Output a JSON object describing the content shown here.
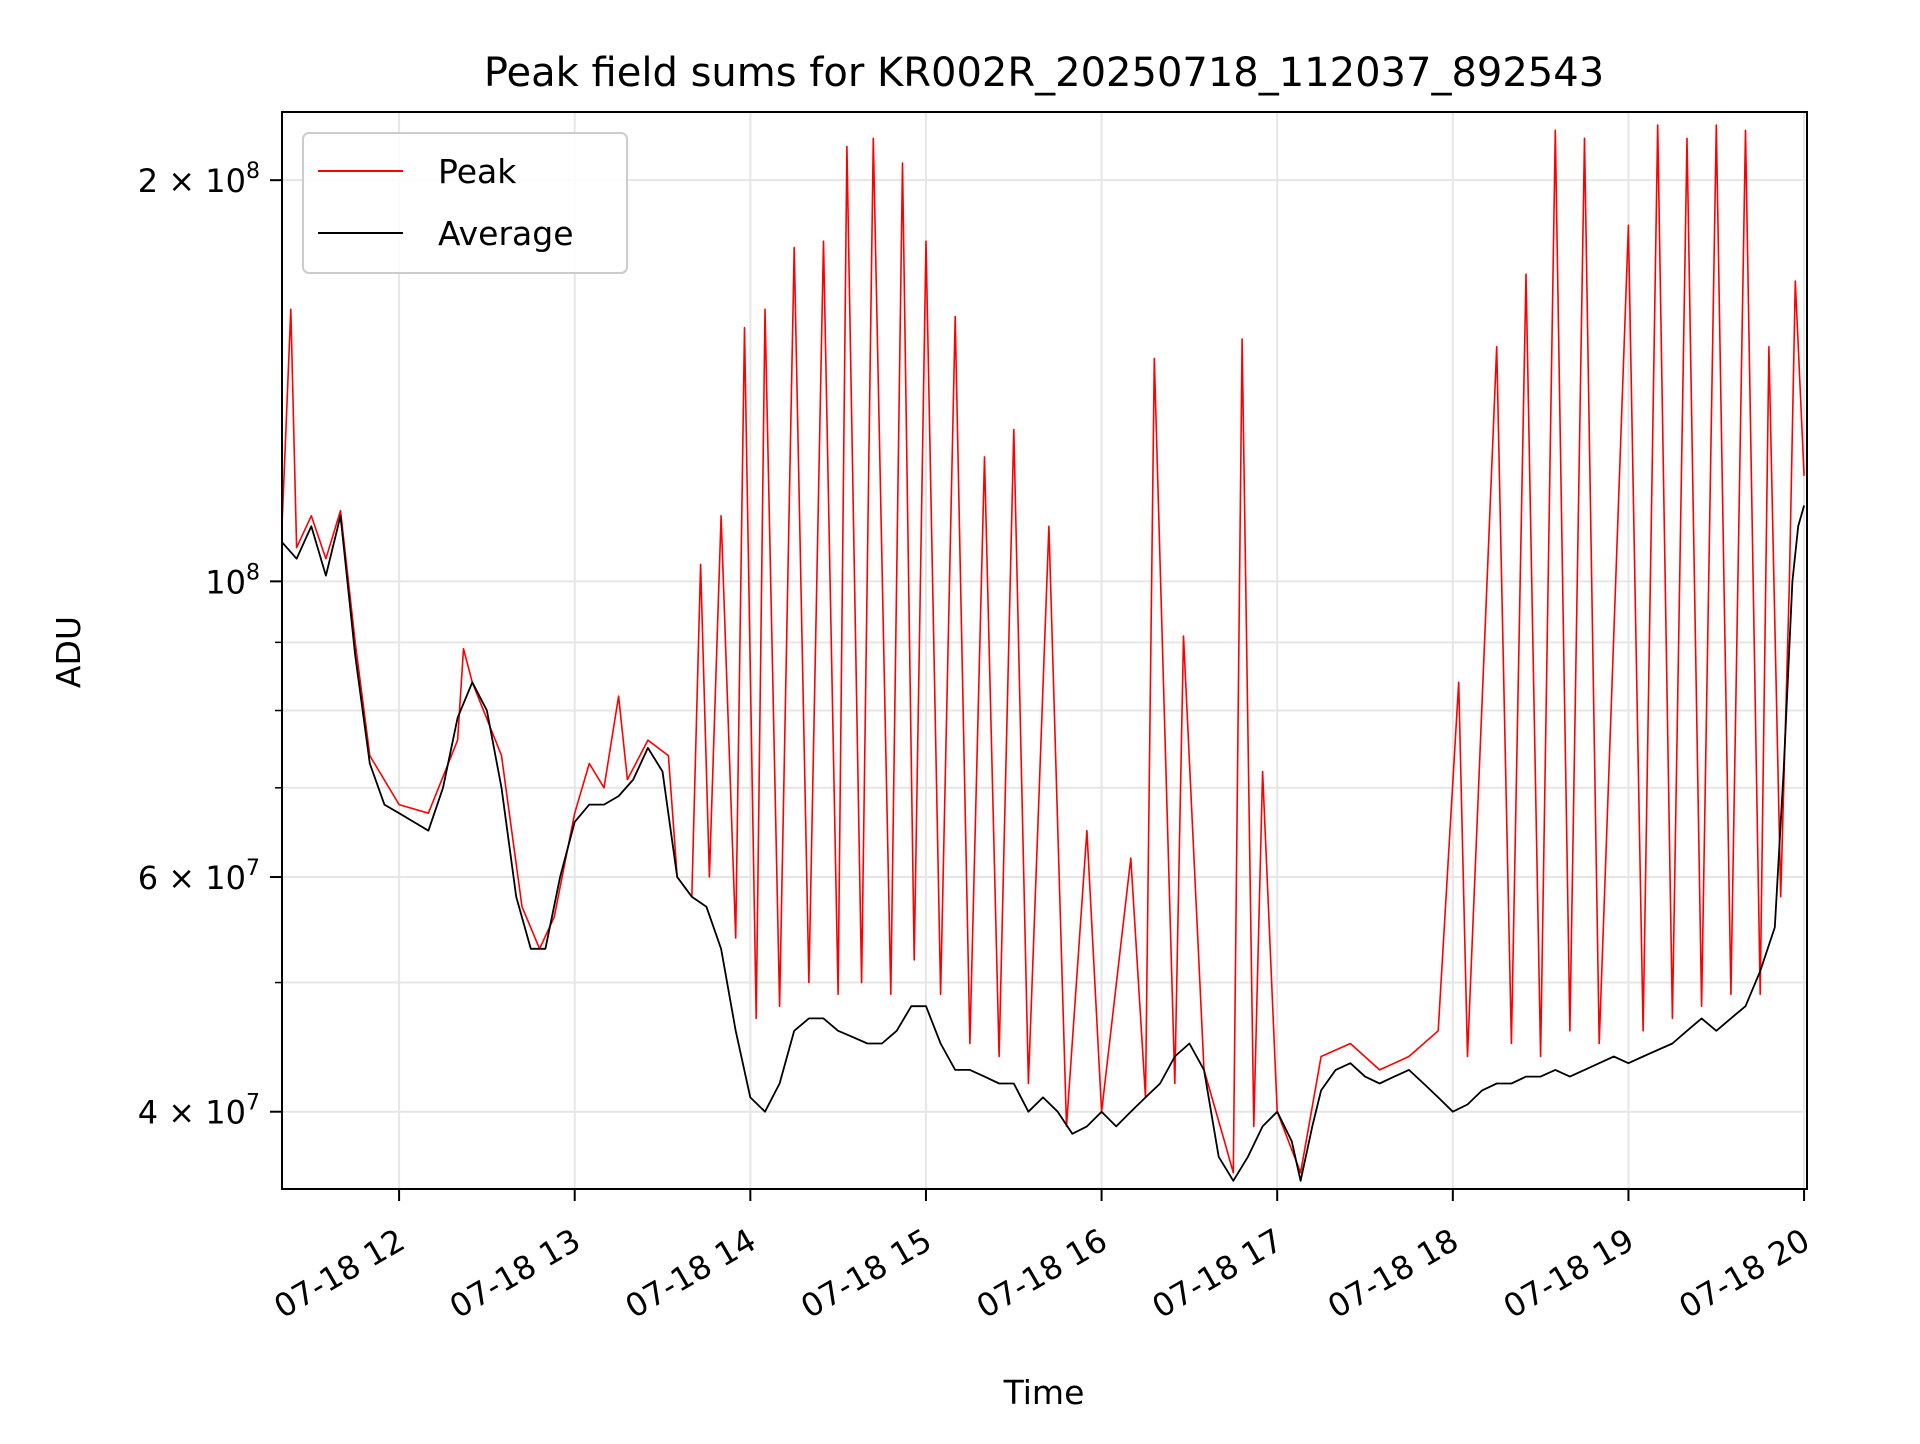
{
  "chart_data": {
    "type": "line",
    "title": "Peak field sums for KR002R_20250718_112037_892543",
    "xlabel": "Time",
    "ylabel": "ADU",
    "y_scale": "log",
    "grid": true,
    "legend_position": "top-left",
    "xlim": [
      "2025-07-18 11:20",
      "2025-07-18 20:01"
    ],
    "ylim": [
      35000000,
      225000000
    ],
    "x_ticks": [
      {
        "t": "2025-07-18 12:00",
        "label": "07-18 12"
      },
      {
        "t": "2025-07-18 13:00",
        "label": "07-18 13"
      },
      {
        "t": "2025-07-18 14:00",
        "label": "07-18 14"
      },
      {
        "t": "2025-07-18 15:00",
        "label": "07-18 15"
      },
      {
        "t": "2025-07-18 16:00",
        "label": "07-18 16"
      },
      {
        "t": "2025-07-18 17:00",
        "label": "07-18 17"
      },
      {
        "t": "2025-07-18 18:00",
        "label": "07-18 18"
      },
      {
        "t": "2025-07-18 19:00",
        "label": "07-18 19"
      },
      {
        "t": "2025-07-18 20:00",
        "label": "07-18 20"
      }
    ],
    "y_ticks": [
      {
        "value": 40000000,
        "mantissa": "4",
        "exp": "7"
      },
      {
        "value": 60000000,
        "mantissa": "6",
        "exp": "7"
      },
      {
        "value": 100000000,
        "mantissa": "",
        "exp": "8"
      },
      {
        "value": 200000000,
        "mantissa": "2",
        "exp": "8"
      }
    ],
    "series": [
      {
        "name": "Peak",
        "color": "#ff0000",
        "points": [
          [
            "2025-07-18 11:20",
            110000000
          ],
          [
            "2025-07-18 11:23",
            160000000
          ],
          [
            "2025-07-18 11:25",
            106000000
          ],
          [
            "2025-07-18 11:30",
            112000000
          ],
          [
            "2025-07-18 11:35",
            104000000
          ],
          [
            "2025-07-18 11:40",
            113000000
          ],
          [
            "2025-07-18 11:45",
            90000000
          ],
          [
            "2025-07-18 11:50",
            74000000
          ],
          [
            "2025-07-18 12:00",
            68000000
          ],
          [
            "2025-07-18 12:10",
            67000000
          ],
          [
            "2025-07-18 12:20",
            76000000
          ],
          [
            "2025-07-18 12:22",
            89000000
          ],
          [
            "2025-07-18 12:25",
            84000000
          ],
          [
            "2025-07-18 12:35",
            74000000
          ],
          [
            "2025-07-18 12:42",
            57000000
          ],
          [
            "2025-07-18 12:48",
            53000000
          ],
          [
            "2025-07-18 12:53",
            56000000
          ],
          [
            "2025-07-18 13:00",
            67000000
          ],
          [
            "2025-07-18 13:05",
            73000000
          ],
          [
            "2025-07-18 13:10",
            70000000
          ],
          [
            "2025-07-18 13:15",
            82000000
          ],
          [
            "2025-07-18 13:18",
            71000000
          ],
          [
            "2025-07-18 13:25",
            76000000
          ],
          [
            "2025-07-18 13:32",
            74000000
          ],
          [
            "2025-07-18 13:35",
            60000000
          ],
          [
            "2025-07-18 13:40",
            58000000
          ],
          [
            "2025-07-18 13:43",
            103000000
          ],
          [
            "2025-07-18 13:46",
            60000000
          ],
          [
            "2025-07-18 13:50",
            112000000
          ],
          [
            "2025-07-18 13:55",
            54000000
          ],
          [
            "2025-07-18 13:58",
            155000000
          ],
          [
            "2025-07-18 14:02",
            47000000
          ],
          [
            "2025-07-18 14:05",
            160000000
          ],
          [
            "2025-07-18 14:10",
            48000000
          ],
          [
            "2025-07-18 14:15",
            178000000
          ],
          [
            "2025-07-18 14:20",
            50000000
          ],
          [
            "2025-07-18 14:25",
            180000000
          ],
          [
            "2025-07-18 14:30",
            49000000
          ],
          [
            "2025-07-18 14:33",
            212000000
          ],
          [
            "2025-07-18 14:38",
            50000000
          ],
          [
            "2025-07-18 14:42",
            215000000
          ],
          [
            "2025-07-18 14:48",
            49000000
          ],
          [
            "2025-07-18 14:52",
            206000000
          ],
          [
            "2025-07-18 14:56",
            52000000
          ],
          [
            "2025-07-18 15:00",
            180000000
          ],
          [
            "2025-07-18 15:05",
            49000000
          ],
          [
            "2025-07-18 15:10",
            158000000
          ],
          [
            "2025-07-18 15:15",
            45000000
          ],
          [
            "2025-07-18 15:20",
            124000000
          ],
          [
            "2025-07-18 15:25",
            44000000
          ],
          [
            "2025-07-18 15:30",
            130000000
          ],
          [
            "2025-07-18 15:35",
            42000000
          ],
          [
            "2025-07-18 15:42",
            110000000
          ],
          [
            "2025-07-18 15:48",
            39000000
          ],
          [
            "2025-07-18 15:55",
            65000000
          ],
          [
            "2025-07-18 16:00",
            40000000
          ],
          [
            "2025-07-18 16:10",
            62000000
          ],
          [
            "2025-07-18 16:15",
            41000000
          ],
          [
            "2025-07-18 16:18",
            147000000
          ],
          [
            "2025-07-18 16:25",
            42000000
          ],
          [
            "2025-07-18 16:28",
            91000000
          ],
          [
            "2025-07-18 16:35",
            43000000
          ],
          [
            "2025-07-18 16:42",
            38000000
          ],
          [
            "2025-07-18 16:45",
            36000000
          ],
          [
            "2025-07-18 16:48",
            152000000
          ],
          [
            "2025-07-18 16:52",
            39000000
          ],
          [
            "2025-07-18 16:55",
            72000000
          ],
          [
            "2025-07-18 17:00",
            40000000
          ],
          [
            "2025-07-18 17:08",
            36000000
          ],
          [
            "2025-07-18 17:15",
            44000000
          ],
          [
            "2025-07-18 17:25",
            45000000
          ],
          [
            "2025-07-18 17:35",
            43000000
          ],
          [
            "2025-07-18 17:45",
            44000000
          ],
          [
            "2025-07-18 17:55",
            46000000
          ],
          [
            "2025-07-18 18:02",
            84000000
          ],
          [
            "2025-07-18 18:05",
            44000000
          ],
          [
            "2025-07-18 18:15",
            150000000
          ],
          [
            "2025-07-18 18:20",
            45000000
          ],
          [
            "2025-07-18 18:25",
            170000000
          ],
          [
            "2025-07-18 18:30",
            44000000
          ],
          [
            "2025-07-18 18:35",
            218000000
          ],
          [
            "2025-07-18 18:40",
            46000000
          ],
          [
            "2025-07-18 18:45",
            215000000
          ],
          [
            "2025-07-18 18:50",
            45000000
          ],
          [
            "2025-07-18 19:00",
            185000000
          ],
          [
            "2025-07-18 19:05",
            46000000
          ],
          [
            "2025-07-18 19:10",
            220000000
          ],
          [
            "2025-07-18 19:15",
            47000000
          ],
          [
            "2025-07-18 19:20",
            215000000
          ],
          [
            "2025-07-18 19:25",
            48000000
          ],
          [
            "2025-07-18 19:30",
            220000000
          ],
          [
            "2025-07-18 19:35",
            49000000
          ],
          [
            "2025-07-18 19:40",
            218000000
          ],
          [
            "2025-07-18 19:45",
            49000000
          ],
          [
            "2025-07-18 19:48",
            150000000
          ],
          [
            "2025-07-18 19:52",
            58000000
          ],
          [
            "2025-07-18 19:55",
            100000000
          ],
          [
            "2025-07-18 19:57",
            168000000
          ],
          [
            "2025-07-18 20:00",
            120000000
          ]
        ]
      },
      {
        "name": "Average",
        "color": "#000000",
        "points": [
          [
            "2025-07-18 11:20",
            107000000
          ],
          [
            "2025-07-18 11:25",
            104000000
          ],
          [
            "2025-07-18 11:30",
            110000000
          ],
          [
            "2025-07-18 11:35",
            101000000
          ],
          [
            "2025-07-18 11:40",
            112000000
          ],
          [
            "2025-07-18 11:45",
            88000000
          ],
          [
            "2025-07-18 11:50",
            73000000
          ],
          [
            "2025-07-18 11:55",
            68000000
          ],
          [
            "2025-07-18 12:00",
            67000000
          ],
          [
            "2025-07-18 12:05",
            66000000
          ],
          [
            "2025-07-18 12:10",
            65000000
          ],
          [
            "2025-07-18 12:15",
            70000000
          ],
          [
            "2025-07-18 12:20",
            79000000
          ],
          [
            "2025-07-18 12:25",
            84000000
          ],
          [
            "2025-07-18 12:30",
            80000000
          ],
          [
            "2025-07-18 12:35",
            70000000
          ],
          [
            "2025-07-18 12:40",
            58000000
          ],
          [
            "2025-07-18 12:45",
            53000000
          ],
          [
            "2025-07-18 12:50",
            53000000
          ],
          [
            "2025-07-18 12:55",
            60000000
          ],
          [
            "2025-07-18 13:00",
            66000000
          ],
          [
            "2025-07-18 13:05",
            68000000
          ],
          [
            "2025-07-18 13:10",
            68000000
          ],
          [
            "2025-07-18 13:15",
            69000000
          ],
          [
            "2025-07-18 13:20",
            71000000
          ],
          [
            "2025-07-18 13:25",
            75000000
          ],
          [
            "2025-07-18 13:30",
            72000000
          ],
          [
            "2025-07-18 13:35",
            60000000
          ],
          [
            "2025-07-18 13:40",
            58000000
          ],
          [
            "2025-07-18 13:45",
            57000000
          ],
          [
            "2025-07-18 13:50",
            53000000
          ],
          [
            "2025-07-18 13:55",
            46000000
          ],
          [
            "2025-07-18 14:00",
            41000000
          ],
          [
            "2025-07-18 14:05",
            40000000
          ],
          [
            "2025-07-18 14:10",
            42000000
          ],
          [
            "2025-07-18 14:15",
            46000000
          ],
          [
            "2025-07-18 14:20",
            47000000
          ],
          [
            "2025-07-18 14:25",
            47000000
          ],
          [
            "2025-07-18 14:30",
            46000000
          ],
          [
            "2025-07-18 14:35",
            45500000
          ],
          [
            "2025-07-18 14:40",
            45000000
          ],
          [
            "2025-07-18 14:45",
            45000000
          ],
          [
            "2025-07-18 14:50",
            46000000
          ],
          [
            "2025-07-18 14:55",
            48000000
          ],
          [
            "2025-07-18 15:00",
            48000000
          ],
          [
            "2025-07-18 15:05",
            45000000
          ],
          [
            "2025-07-18 15:10",
            43000000
          ],
          [
            "2025-07-18 15:15",
            43000000
          ],
          [
            "2025-07-18 15:20",
            42500000
          ],
          [
            "2025-07-18 15:25",
            42000000
          ],
          [
            "2025-07-18 15:30",
            42000000
          ],
          [
            "2025-07-18 15:35",
            40000000
          ],
          [
            "2025-07-18 15:40",
            41000000
          ],
          [
            "2025-07-18 15:45",
            40000000
          ],
          [
            "2025-07-18 15:50",
            38500000
          ],
          [
            "2025-07-18 15:55",
            39000000
          ],
          [
            "2025-07-18 16:00",
            40000000
          ],
          [
            "2025-07-18 16:05",
            39000000
          ],
          [
            "2025-07-18 16:10",
            40000000
          ],
          [
            "2025-07-18 16:15",
            41000000
          ],
          [
            "2025-07-18 16:20",
            42000000
          ],
          [
            "2025-07-18 16:25",
            44000000
          ],
          [
            "2025-07-18 16:30",
            45000000
          ],
          [
            "2025-07-18 16:35",
            43000000
          ],
          [
            "2025-07-18 16:40",
            37000000
          ],
          [
            "2025-07-18 16:45",
            35500000
          ],
          [
            "2025-07-18 16:50",
            37000000
          ],
          [
            "2025-07-18 16:55",
            39000000
          ],
          [
            "2025-07-18 17:00",
            40000000
          ],
          [
            "2025-07-18 17:05",
            38000000
          ],
          [
            "2025-07-18 17:08",
            35500000
          ],
          [
            "2025-07-18 17:12",
            39000000
          ],
          [
            "2025-07-18 17:15",
            41500000
          ],
          [
            "2025-07-18 17:20",
            43000000
          ],
          [
            "2025-07-18 17:25",
            43500000
          ],
          [
            "2025-07-18 17:30",
            42500000
          ],
          [
            "2025-07-18 17:35",
            42000000
          ],
          [
            "2025-07-18 17:40",
            42500000
          ],
          [
            "2025-07-18 17:45",
            43000000
          ],
          [
            "2025-07-18 17:50",
            42000000
          ],
          [
            "2025-07-18 17:55",
            41000000
          ],
          [
            "2025-07-18 18:00",
            40000000
          ],
          [
            "2025-07-18 18:05",
            40500000
          ],
          [
            "2025-07-18 18:10",
            41500000
          ],
          [
            "2025-07-18 18:15",
            42000000
          ],
          [
            "2025-07-18 18:20",
            42000000
          ],
          [
            "2025-07-18 18:25",
            42500000
          ],
          [
            "2025-07-18 18:30",
            42500000
          ],
          [
            "2025-07-18 18:35",
            43000000
          ],
          [
            "2025-07-18 18:40",
            42500000
          ],
          [
            "2025-07-18 18:45",
            43000000
          ],
          [
            "2025-07-18 18:50",
            43500000
          ],
          [
            "2025-07-18 18:55",
            44000000
          ],
          [
            "2025-07-18 19:00",
            43500000
          ],
          [
            "2025-07-18 19:05",
            44000000
          ],
          [
            "2025-07-18 19:10",
            44500000
          ],
          [
            "2025-07-18 19:15",
            45000000
          ],
          [
            "2025-07-18 19:20",
            46000000
          ],
          [
            "2025-07-18 19:25",
            47000000
          ],
          [
            "2025-07-18 19:30",
            46000000
          ],
          [
            "2025-07-18 19:35",
            47000000
          ],
          [
            "2025-07-18 19:40",
            48000000
          ],
          [
            "2025-07-18 19:45",
            51000000
          ],
          [
            "2025-07-18 19:50",
            55000000
          ],
          [
            "2025-07-18 19:53",
            72000000
          ],
          [
            "2025-07-18 19:56",
            100000000
          ],
          [
            "2025-07-18 19:58",
            110000000
          ],
          [
            "2025-07-18 20:00",
            114000000
          ]
        ]
      }
    ]
  }
}
